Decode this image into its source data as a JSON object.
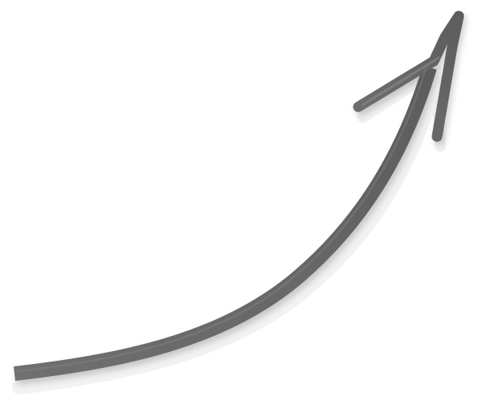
{
  "graphic": {
    "icon": "curved-arrow-up-right-icon",
    "colors": {
      "background": "#ffffff",
      "stroke": "#666666",
      "highlight": "#8c8c8c",
      "shadow": "#dddddd"
    }
  }
}
